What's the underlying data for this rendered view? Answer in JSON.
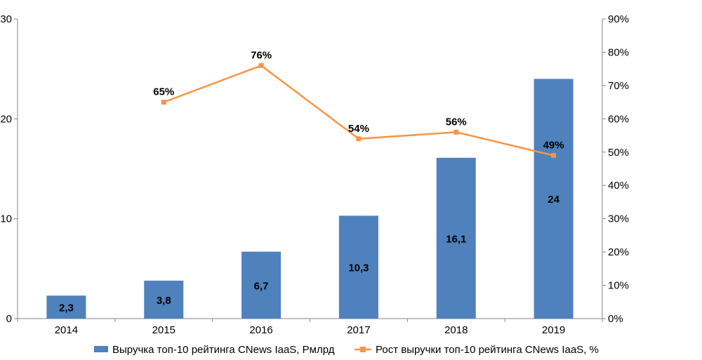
{
  "chart_data": {
    "type": "bar",
    "categories": [
      "2014",
      "2015",
      "2016",
      "2017",
      "2018",
      "2019"
    ],
    "series": [
      {
        "name": "Выручка топ-10 рейтинга CNews IaaS, Рмлрд",
        "kind": "bar",
        "axis": "left",
        "color": "#4F81BD",
        "values": [
          2.3,
          3.8,
          6.7,
          10.3,
          16.1,
          24
        ],
        "labels": [
          "2,3",
          "3,8",
          "6,7",
          "10,3",
          "16,1",
          "24"
        ]
      },
      {
        "name": "Рост выручки топ-10 рейтинга CNews IaaS, %",
        "kind": "line",
        "axis": "right",
        "color": "#F79646",
        "values": [
          null,
          65,
          76,
          54,
          56,
          49
        ],
        "labels": [
          "",
          "65%",
          "76%",
          "54%",
          "56%",
          "49%"
        ]
      }
    ],
    "y_left": {
      "min": 0,
      "max": 30,
      "ticks": [
        "0",
        "10",
        "20",
        "30"
      ],
      "tick_values": [
        0,
        10,
        20,
        30
      ]
    },
    "y_right": {
      "min": 0,
      "max": 90,
      "ticks": [
        "0%",
        "10%",
        "20%",
        "30%",
        "40%",
        "50%",
        "60%",
        "70%",
        "80%",
        "90%"
      ],
      "tick_values": [
        0,
        10,
        20,
        30,
        40,
        50,
        60,
        70,
        80,
        90
      ]
    },
    "grid": false,
    "legend_position": "bottom"
  }
}
